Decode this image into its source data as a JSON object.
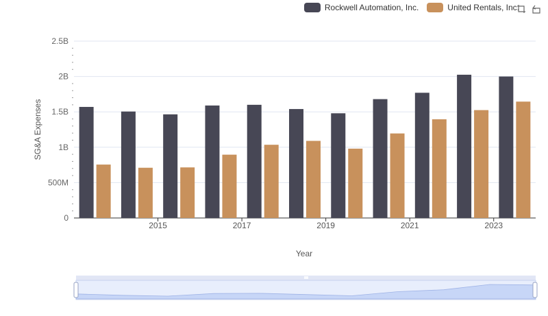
{
  "chart_data": {
    "type": "bar",
    "xlabel": "Year",
    "ylabel": "SG&A Expenses",
    "categories": [
      "2014",
      "2015",
      "2016",
      "2017",
      "2018",
      "2019",
      "2020",
      "2021",
      "2022",
      "2023",
      "2024"
    ],
    "x_tick_labels": [
      "2015",
      "2017",
      "2019",
      "2021",
      "2023"
    ],
    "y_tick_labels": [
      "0",
      "500M",
      "1B",
      "1.5B",
      "2B",
      "2.5B"
    ],
    "ylim": [
      0,
      2500000000
    ],
    "grid": true,
    "legend_position": "top-right",
    "series": [
      {
        "name": "Rockwell Automation, Inc.",
        "color": "#474755",
        "values": [
          1570000000,
          1505000000,
          1465000000,
          1590000000,
          1600000000,
          1540000000,
          1480000000,
          1680000000,
          1770000000,
          2025000000,
          2000000000
        ]
      },
      {
        "name": "United Rentals, Inc.",
        "color": "#c8915c",
        "values": [
          755000000,
          710000000,
          715000000,
          895000000,
          1035000000,
          1090000000,
          980000000,
          1195000000,
          1395000000,
          1525000000,
          1645000000
        ]
      }
    ]
  },
  "toolbox": {
    "zoom_icon": "zoom-icon",
    "restore_icon": "restore-icon"
  }
}
